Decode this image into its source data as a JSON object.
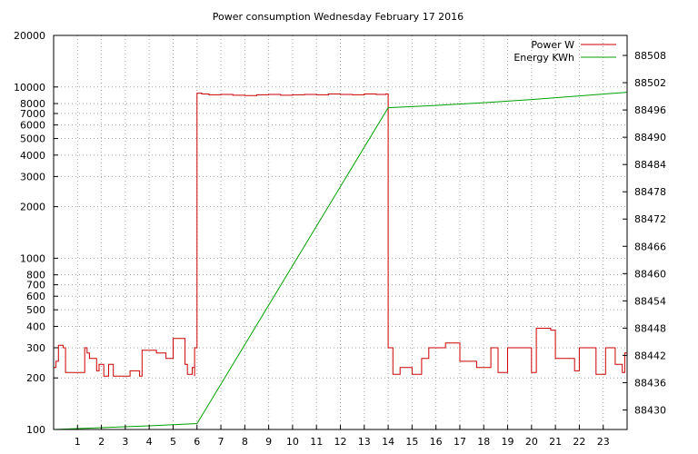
{
  "chart_data": {
    "type": "line",
    "title": "Power consumption Wednesday February 17 2016",
    "xlabel": "",
    "ylabel": "",
    "y2label": "",
    "xlim": [
      0,
      24
    ],
    "ylim": [
      100,
      20000
    ],
    "yscale": "log",
    "y2lim": [
      88425.7,
      88512.4
    ],
    "grid": true,
    "legend_position": "top-right",
    "x_ticks": [
      1,
      2,
      3,
      4,
      5,
      6,
      7,
      8,
      9,
      10,
      11,
      12,
      13,
      14,
      15,
      16,
      17,
      18,
      19,
      20,
      21,
      22,
      23
    ],
    "y_ticks": [
      {
        "value": 100,
        "label": "100"
      },
      {
        "value": 200,
        "label": "200"
      },
      {
        "value": 300,
        "label": "300"
      },
      {
        "value": 400,
        "label": "400"
      },
      {
        "value": 500,
        "label": "500"
      },
      {
        "value": 600,
        "label": "600"
      },
      {
        "value": 700,
        "label": "700"
      },
      {
        "value": 800,
        "label": "800"
      },
      {
        "value": 1000,
        "label": "1000"
      },
      {
        "value": 2000,
        "label": "2000"
      },
      {
        "value": 3000,
        "label": "3000"
      },
      {
        "value": 4000,
        "label": "4000"
      },
      {
        "value": 5000,
        "label": "5000"
      },
      {
        "value": 6000,
        "label": "6000"
      },
      {
        "value": 7000,
        "label": "7000"
      },
      {
        "value": 8000,
        "label": "8000"
      },
      {
        "value": 10000,
        "label": "10000"
      },
      {
        "value": 20000,
        "label": "20000"
      }
    ],
    "y2_ticks": [
      {
        "value": 88430,
        "label": "88430"
      },
      {
        "value": 88436,
        "label": "88436"
      },
      {
        "value": 88442,
        "label": "88442"
      },
      {
        "value": 88448,
        "label": "88448"
      },
      {
        "value": 88454,
        "label": "88454"
      },
      {
        "value": 88460,
        "label": "88460"
      },
      {
        "value": 88466,
        "label": "88466"
      },
      {
        "value": 88472,
        "label": "88472"
      },
      {
        "value": 88478,
        "label": "88478"
      },
      {
        "value": 88484,
        "label": "88484"
      },
      {
        "value": 88490,
        "label": "88490"
      },
      {
        "value": 88496,
        "label": "88496"
      },
      {
        "value": 88502,
        "label": "88502"
      },
      {
        "value": 88508,
        "label": "88508"
      }
    ],
    "series": [
      {
        "name": "Power W",
        "axis": "left",
        "color": "#cc0000",
        "x": [
          0.0,
          0.1,
          0.2,
          0.2,
          0.4,
          0.5,
          0.7,
          1.3,
          1.4,
          1.5,
          1.8,
          1.9,
          2.1,
          2.3,
          2.5,
          2.9,
          3.2,
          3.6,
          3.7,
          4.3,
          4.5,
          4.7,
          4.8,
          5.0,
          5.2,
          5.5,
          5.6,
          5.8,
          5.9,
          5.9,
          6.0,
          6.2,
          6.5,
          7.0,
          7.5,
          8.0,
          8.5,
          9.0,
          9.5,
          10.0,
          10.5,
          11.0,
          11.5,
          12.0,
          12.5,
          13.0,
          13.5,
          13.9,
          14.0,
          14.0,
          14.2,
          14.5,
          15.0,
          15.3,
          15.4,
          15.7,
          16.0,
          16.4,
          17.0,
          17.7,
          18.3,
          18.6,
          19.0,
          19.6,
          20.0,
          20.2,
          20.8,
          21.0,
          21.5,
          21.8,
          22.0,
          22.3,
          22.7,
          23.1,
          23.5,
          23.8,
          23.9,
          24.0
        ],
        "y": [
          230,
          250,
          300,
          310,
          300,
          215,
          215,
          300,
          280,
          260,
          220,
          240,
          205,
          240,
          205,
          205,
          220,
          205,
          290,
          280,
          280,
          260,
          260,
          340,
          340,
          240,
          210,
          230,
          205,
          300,
          9200,
          9100,
          9000,
          9050,
          8950,
          8900,
          9000,
          9050,
          8950,
          9000,
          9050,
          9000,
          9100,
          9050,
          9000,
          9100,
          9050,
          9100,
          9050,
          300,
          210,
          230,
          210,
          210,
          260,
          300,
          300,
          320,
          250,
          230,
          300,
          215,
          300,
          300,
          215,
          390,
          380,
          260,
          260,
          220,
          300,
          300,
          210,
          300,
          240,
          215,
          280,
          280
        ]
      },
      {
        "name": "Energy KWh",
        "axis": "right",
        "color": "#00a000",
        "x": [
          0,
          2,
          4,
          6,
          14,
          16,
          18,
          20,
          22,
          24
        ],
        "y": [
          88425.7,
          88426.1,
          88426.5,
          88427.0,
          88496.5,
          88497.0,
          88497.6,
          88498.3,
          88499.1,
          88499.9
        ]
      }
    ]
  }
}
